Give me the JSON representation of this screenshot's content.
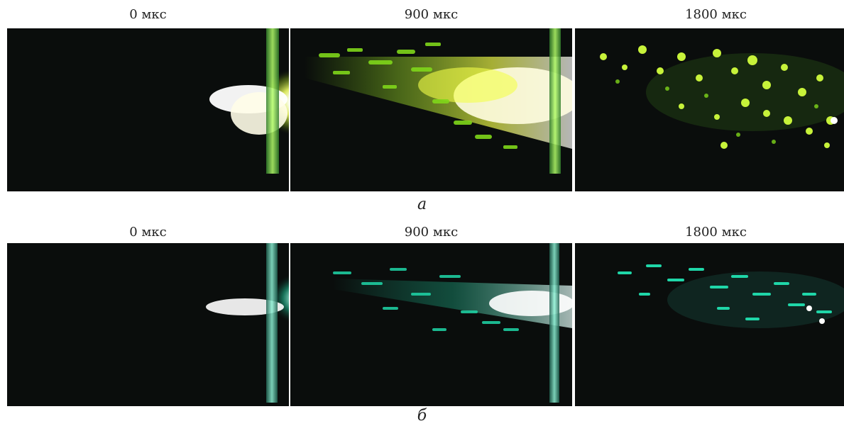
{
  "rows": [
    {
      "caption": "а",
      "panels": [
        {
          "time": "0 мкс"
        },
        {
          "time": "900 мкс"
        },
        {
          "time": "1800 мкс"
        }
      ]
    },
    {
      "caption": "б",
      "panels": [
        {
          "time": "0 мкс"
        },
        {
          "time": "900 мкс"
        },
        {
          "time": "1800 мкс"
        }
      ]
    }
  ],
  "colors": {
    "background": "#0a0d0c",
    "row_a_glow": "#f2ff6a",
    "row_a_particles": "#7fd61a",
    "row_b_glow": "#c9fff4",
    "row_b_particles": "#1fd6a8"
  }
}
